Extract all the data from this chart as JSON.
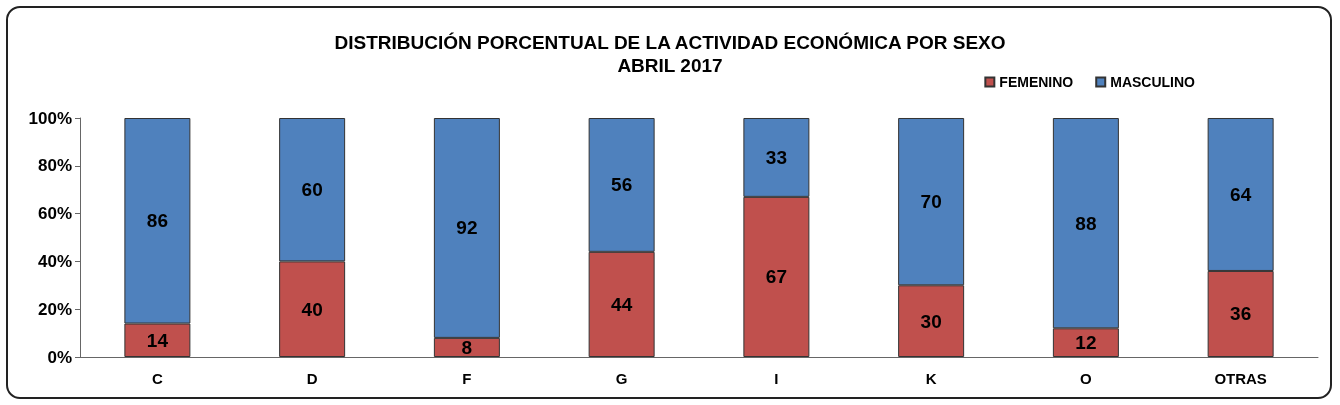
{
  "chart_data": {
    "type": "bar",
    "stacked": true,
    "title": "DISTRIBUCIÓN PORCENTUAL DE LA ACTIVIDAD ECONÓMICA POR SEXO",
    "subtitle": "ABRIL 2017",
    "categories": [
      "C",
      "D",
      "F",
      "G",
      "I",
      "K",
      "O",
      "OTRAS"
    ],
    "series": [
      {
        "name": "FEMENINO",
        "color": "#c0504d",
        "values": [
          14,
          40,
          8,
          44,
          67,
          30,
          12,
          36
        ]
      },
      {
        "name": "MASCULINO",
        "color": "#4f81bd",
        "values": [
          86,
          60,
          92,
          56,
          33,
          70,
          88,
          64
        ]
      }
    ],
    "ylim": [
      0,
      100
    ],
    "yticks": [
      {
        "value": 0,
        "label": "0%"
      },
      {
        "value": 20,
        "label": "20%"
      },
      {
        "value": 40,
        "label": "40%"
      },
      {
        "value": 60,
        "label": "60%"
      },
      {
        "value": 80,
        "label": "80%"
      },
      {
        "value": 100,
        "label": "100%"
      }
    ],
    "data_labels": true,
    "legend": "top right",
    "grid": false
  }
}
